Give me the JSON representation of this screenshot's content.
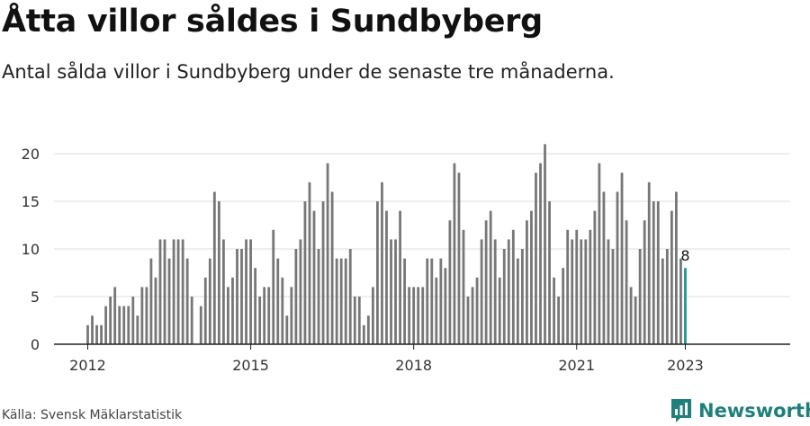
{
  "header": {
    "title": "Åtta villor såldes i Sundbyberg",
    "subtitle": "Antal sålda villor i Sundbyberg under de senaste tre månaderna."
  },
  "footer": {
    "source": "Källa: Svensk Mäklarstatistik",
    "brand": "Newsworthy"
  },
  "colors": {
    "bar": "#777777",
    "highlight": "#1a9a96",
    "grid": "#dddddd",
    "axis": "#222222",
    "brand": "#1f7f7d"
  },
  "chart_data": {
    "type": "bar",
    "title": "Åtta villor såldes i Sundbyberg",
    "subtitle": "Antal sålda villor i Sundbyberg under de senaste tre månaderna.",
    "xlabel": "",
    "ylabel": "",
    "x_start": "2012-01",
    "x_frequency": "monthly",
    "x_ticks": [
      "2012",
      "2015",
      "2018",
      "2021",
      "2023"
    ],
    "y_ticks": [
      0,
      5,
      10,
      15,
      20
    ],
    "ylim": [
      0,
      21
    ],
    "grid": true,
    "values": [
      2,
      3,
      2,
      2,
      4,
      5,
      6,
      4,
      4,
      4,
      5,
      3,
      6,
      6,
      9,
      7,
      11,
      11,
      9,
      11,
      11,
      11,
      9,
      5,
      null,
      4,
      7,
      9,
      16,
      15,
      11,
      6,
      7,
      10,
      10,
      11,
      11,
      8,
      5,
      6,
      6,
      12,
      9,
      7,
      3,
      6,
      10,
      11,
      15,
      17,
      14,
      10,
      15,
      19,
      16,
      9,
      9,
      9,
      10,
      5,
      5,
      2,
      3,
      6,
      15,
      17,
      14,
      11,
      11,
      14,
      9,
      6,
      6,
      6,
      6,
      9,
      9,
      7,
      9,
      8,
      13,
      19,
      18,
      12,
      5,
      6,
      7,
      11,
      13,
      14,
      11,
      7,
      10,
      11,
      12,
      9,
      10,
      13,
      14,
      18,
      19,
      21,
      15,
      7,
      5,
      8,
      12,
      11,
      12,
      11,
      11,
      12,
      14,
      19,
      16,
      11,
      10,
      16,
      18,
      13,
      6,
      5,
      10,
      13,
      17,
      15,
      15,
      9,
      10,
      14,
      16,
      9,
      8
    ],
    "highlight_last": true,
    "last_value_label": "8"
  }
}
